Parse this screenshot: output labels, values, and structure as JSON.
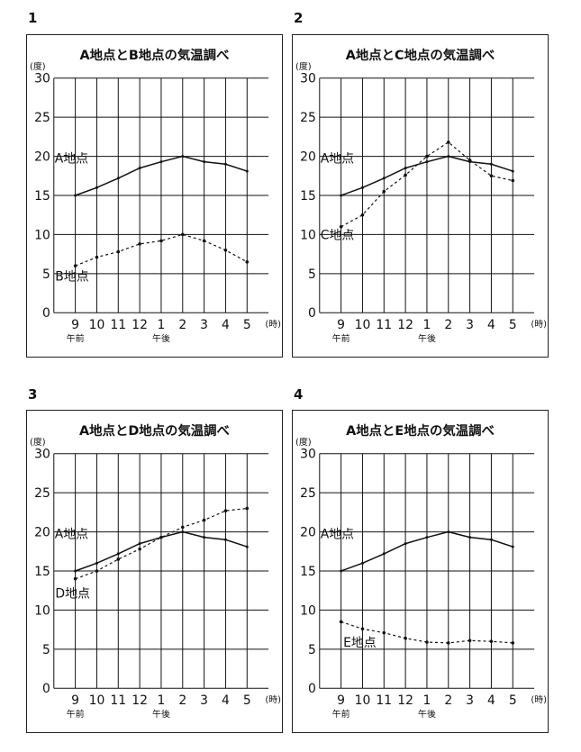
{
  "chart_data": [
    {
      "type": "line",
      "panel_number": "1",
      "title": "A地点とB地点の気温調べ",
      "ylabel": "(度)",
      "xlabel": "(時)",
      "ylim": [
        0,
        30
      ],
      "yticks": [
        "0",
        "5",
        "10",
        "15",
        "20",
        "25",
        "30"
      ],
      "categories": [
        "9",
        "10",
        "11",
        "12",
        "1",
        "2",
        "3",
        "4",
        "5"
      ],
      "tick_labels": [
        "9",
        "10",
        "11",
        "12",
        "1",
        "2",
        "3",
        "4",
        "5"
      ],
      "am_label": "午前",
      "pm_label": "午後",
      "grid": true,
      "series": [
        {
          "name": "A地点",
          "style": "solid",
          "values": [
            15,
            16,
            17.2,
            18.5,
            19.3,
            20,
            19.3,
            19,
            18.1
          ]
        },
        {
          "name": "B地点",
          "style": "dashed",
          "values": [
            6,
            7.1,
            7.8,
            8.8,
            9.2,
            10,
            9.2,
            8,
            6.5
          ]
        }
      ]
    },
    {
      "type": "line",
      "panel_number": "2",
      "title": "A地点とC地点の気温調べ",
      "ylabel": "(度)",
      "xlabel": "(時)",
      "ylim": [
        0,
        30
      ],
      "yticks": [
        "0",
        "5",
        "10",
        "15",
        "20",
        "25",
        "30"
      ],
      "categories": [
        "9",
        "10",
        "11",
        "12",
        "1",
        "2",
        "3",
        "4",
        "5"
      ],
      "tick_labels": [
        "9",
        "10",
        "11",
        "12",
        "1",
        "2",
        "3",
        "4",
        "5"
      ],
      "am_label": "午前",
      "pm_label": "午後",
      "grid": true,
      "series": [
        {
          "name": "A地点",
          "style": "solid",
          "values": [
            15,
            16,
            17.2,
            18.5,
            19.3,
            20,
            19.3,
            19,
            18.1
          ]
        },
        {
          "name": "C地点",
          "style": "dashed",
          "values": [
            11,
            12.5,
            15.5,
            17.6,
            20,
            21.8,
            19.5,
            17.5,
            16.9
          ]
        }
      ]
    },
    {
      "type": "line",
      "panel_number": "3",
      "title": "A地点とD地点の気温調べ",
      "ylabel": "(度)",
      "xlabel": "(時)",
      "ylim": [
        0,
        30
      ],
      "yticks": [
        "0",
        "5",
        "10",
        "15",
        "20",
        "25",
        "30"
      ],
      "categories": [
        "9",
        "10",
        "11",
        "12",
        "1",
        "2",
        "3",
        "4",
        "5"
      ],
      "tick_labels": [
        "9",
        "10",
        "11",
        "12",
        "1",
        "2",
        "3",
        "4",
        "5"
      ],
      "am_label": "午前",
      "pm_label": "午後",
      "grid": true,
      "series": [
        {
          "name": "A地点",
          "style": "solid",
          "values": [
            15,
            16,
            17.2,
            18.5,
            19.3,
            20,
            19.3,
            19,
            18.1
          ]
        },
        {
          "name": "D地点",
          "style": "dashed",
          "values": [
            14,
            15,
            16.5,
            17.8,
            19.3,
            20.6,
            21.5,
            22.7,
            23
          ]
        }
      ]
    },
    {
      "type": "line",
      "panel_number": "4",
      "title": "A地点とE地点の気温調べ",
      "ylabel": "(度)",
      "xlabel": "(時)",
      "ylim": [
        0,
        30
      ],
      "yticks": [
        "0",
        "5",
        "10",
        "15",
        "20",
        "25",
        "30"
      ],
      "categories": [
        "9",
        "10",
        "11",
        "12",
        "1",
        "2",
        "3",
        "4",
        "5"
      ],
      "tick_labels": [
        "9",
        "10",
        "11",
        "12",
        "1",
        "2",
        "3",
        "4",
        "5"
      ],
      "am_label": "午前",
      "pm_label": "午後",
      "grid": true,
      "series": [
        {
          "name": "A地点",
          "style": "solid",
          "values": [
            15,
            16,
            17.2,
            18.5,
            19.3,
            20,
            19.3,
            19,
            18.1
          ]
        },
        {
          "name": "E地点",
          "style": "dashed",
          "values": [
            8.5,
            7.6,
            7.1,
            6.4,
            5.9,
            5.8,
            6.1,
            6,
            5.8
          ]
        }
      ]
    }
  ]
}
